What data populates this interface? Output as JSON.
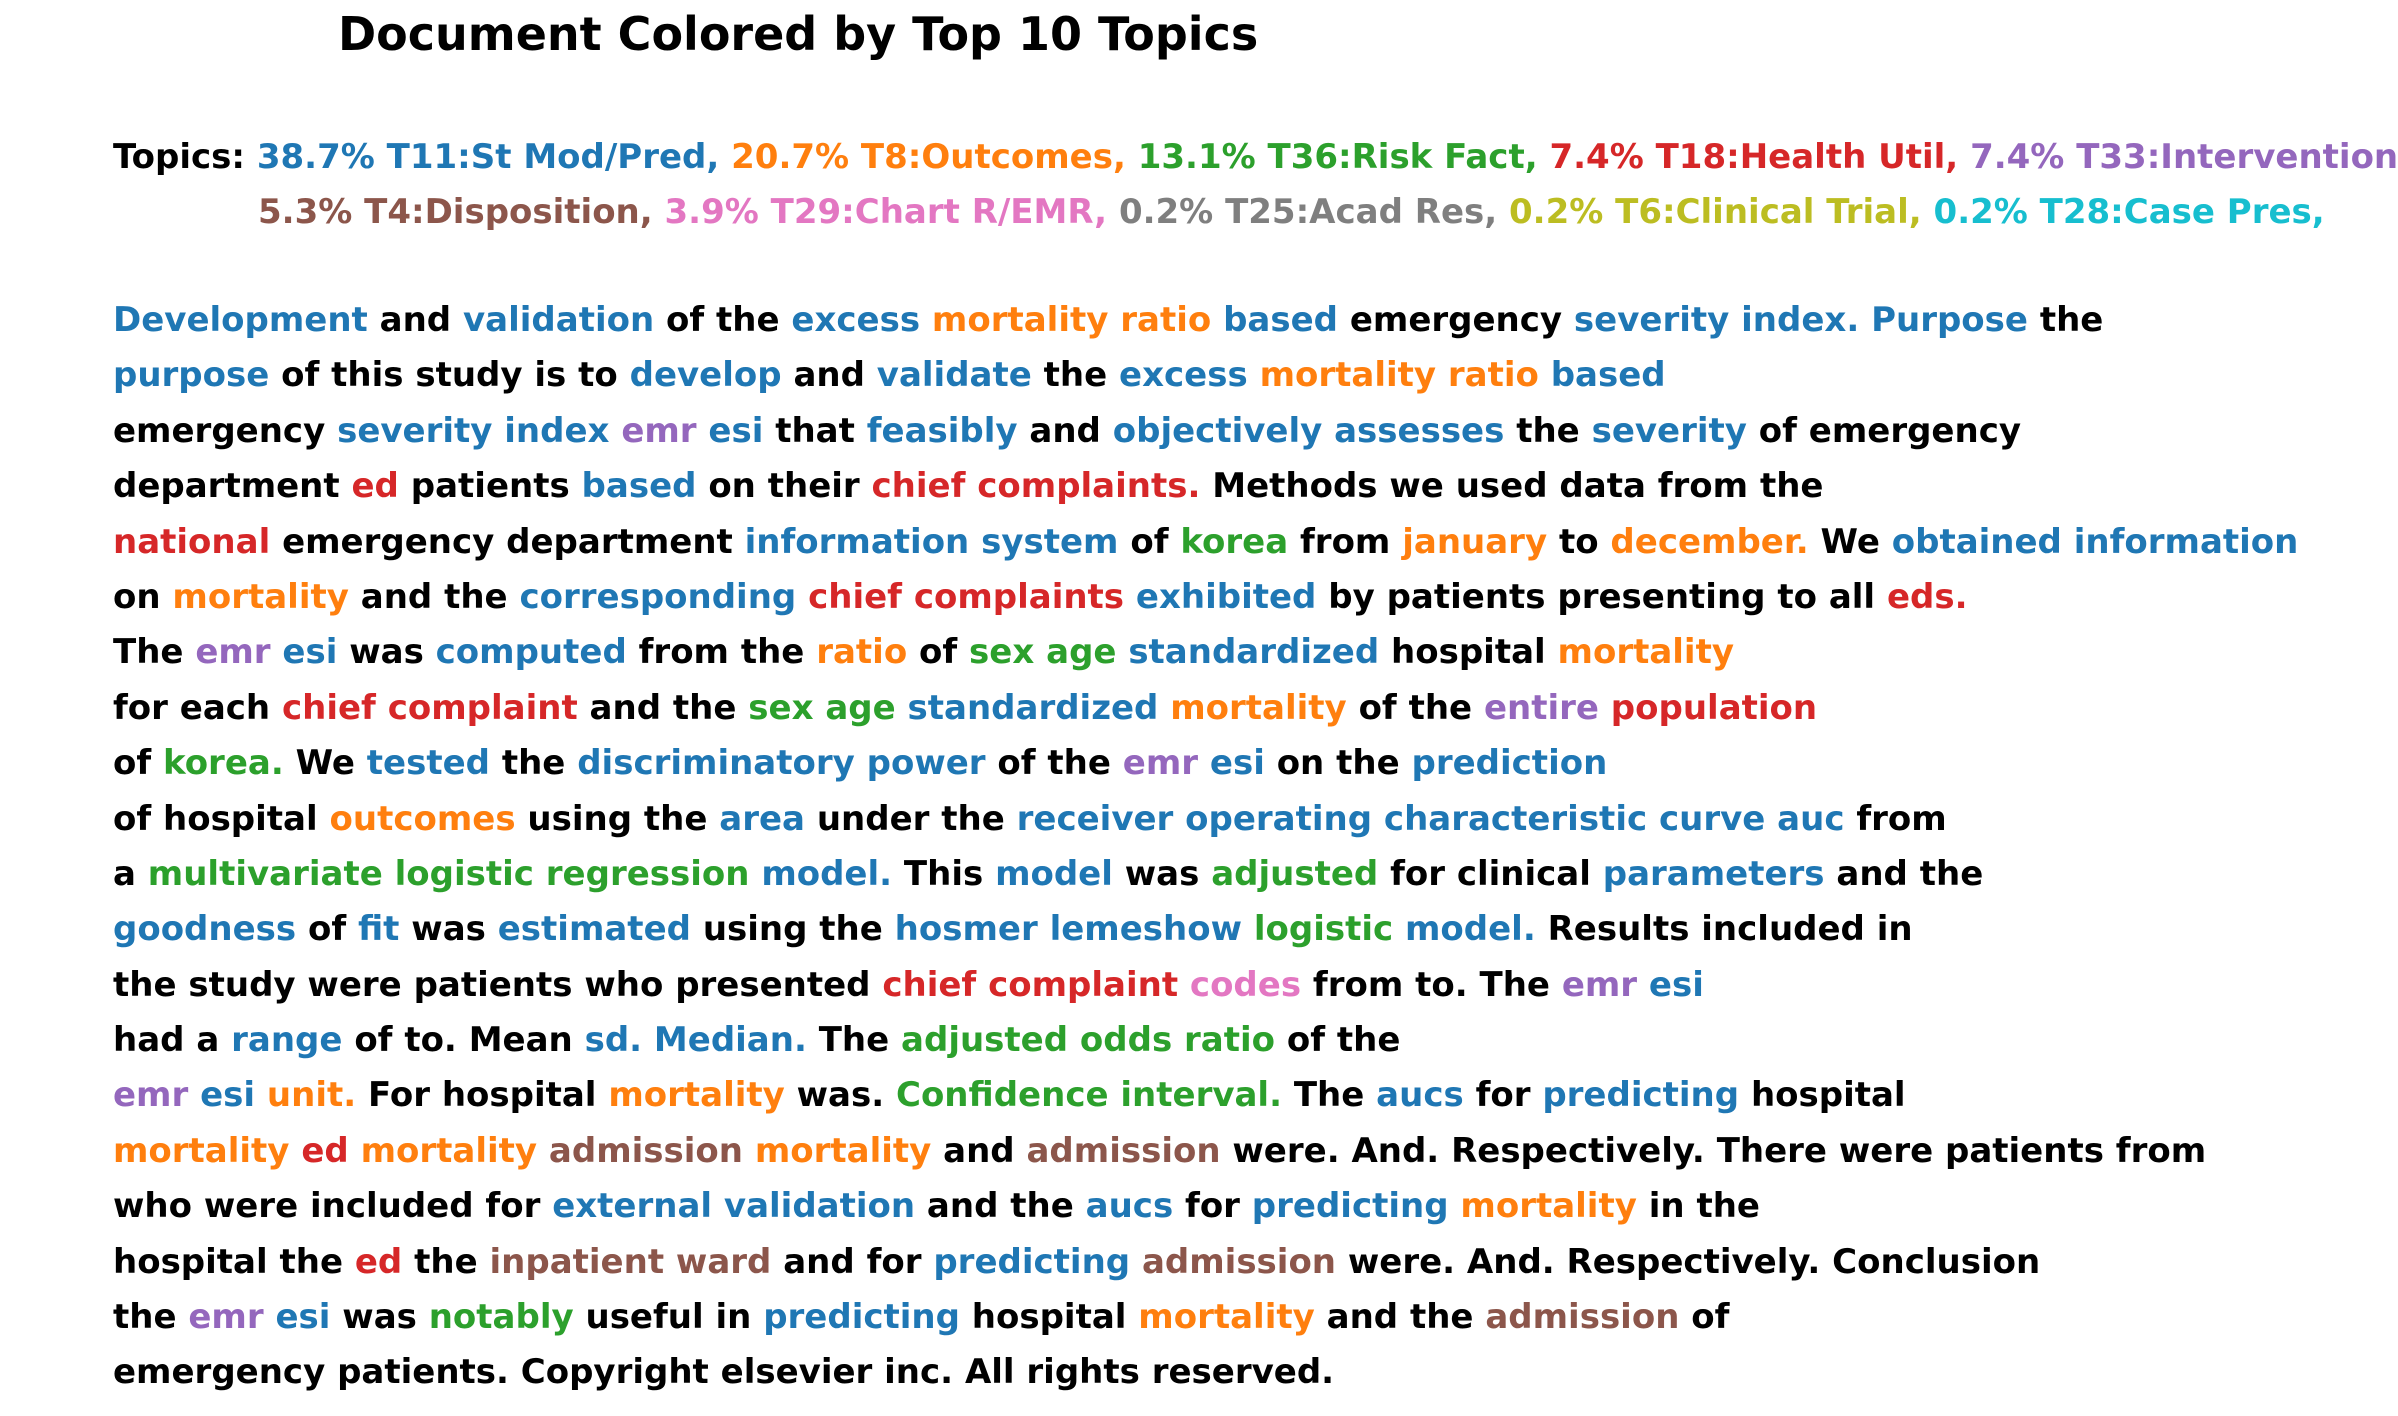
{
  "title": "Document Colored by Top 10 Topics",
  "colors": {
    "T11": "#1f77b4",
    "T8": "#ff7f0e",
    "T36": "#2ca02c",
    "T18": "#d62728",
    "T33": "#9467bd",
    "T4": "#8c564b",
    "T29": "#e377c2",
    "T25": "#7f7f7f",
    "T6": "#bcbd22",
    "T28": "#17becf",
    "none": "#000000"
  },
  "topics_label": "Topics: ",
  "topics_rows": [
    [
      {
        "text": "38.7% T11:St Mod/Pred, ",
        "t": "T11"
      },
      {
        "text": "20.7% T8:Outcomes, ",
        "t": "T8"
      },
      {
        "text": "13.1% T36:Risk Fact, ",
        "t": "T36"
      },
      {
        "text": "7.4% T18:Health Util, ",
        "t": "T18"
      },
      {
        "text": "7.4% T33:Intervention,",
        "t": "T33"
      }
    ],
    [
      {
        "text": "5.3% T4:Disposition, ",
        "t": "T4"
      },
      {
        "text": "3.9% T29:Chart R/EMR, ",
        "t": "T29"
      },
      {
        "text": "0.2% T25:Acad Res, ",
        "t": "T25"
      },
      {
        "text": "0.2% T6:Clinical Trial, ",
        "t": "T6"
      },
      {
        "text": "0.2% T28:Case Pres,",
        "t": "T28"
      }
    ]
  ],
  "lines": [
    [
      [
        "Development",
        "T11"
      ],
      [
        "and",
        "none"
      ],
      [
        "validation",
        "T11"
      ],
      [
        "of",
        "none"
      ],
      [
        "the",
        "none"
      ],
      [
        "excess",
        "T11"
      ],
      [
        "mortality",
        "T8"
      ],
      [
        "ratio",
        "T8"
      ],
      [
        "based",
        "T11"
      ],
      [
        "emergency",
        "none"
      ],
      [
        "severity",
        "T11"
      ],
      [
        "index.",
        "T11"
      ],
      [
        "Purpose",
        "T11"
      ],
      [
        "the",
        "none"
      ]
    ],
    [
      [
        "purpose",
        "T11"
      ],
      [
        "of",
        "none"
      ],
      [
        "this",
        "none"
      ],
      [
        "study",
        "none"
      ],
      [
        "is",
        "none"
      ],
      [
        "to",
        "none"
      ],
      [
        "develop",
        "T11"
      ],
      [
        "and",
        "none"
      ],
      [
        "validate",
        "T11"
      ],
      [
        "the",
        "none"
      ],
      [
        "excess",
        "T11"
      ],
      [
        "mortality",
        "T8"
      ],
      [
        "ratio",
        "T8"
      ],
      [
        "based",
        "T11"
      ]
    ],
    [
      [
        "emergency",
        "none"
      ],
      [
        "severity",
        "T11"
      ],
      [
        "index",
        "T11"
      ],
      [
        "emr",
        "T33"
      ],
      [
        "esi",
        "T11"
      ],
      [
        "that",
        "none"
      ],
      [
        "feasibly",
        "T11"
      ],
      [
        "and",
        "none"
      ],
      [
        "objectively",
        "T11"
      ],
      [
        "assesses",
        "T11"
      ],
      [
        "the",
        "none"
      ],
      [
        "severity",
        "T11"
      ],
      [
        "of",
        "none"
      ],
      [
        "emergency",
        "none"
      ]
    ],
    [
      [
        "department",
        "none"
      ],
      [
        "ed",
        "T18"
      ],
      [
        "patients",
        "none"
      ],
      [
        "based",
        "T11"
      ],
      [
        "on",
        "none"
      ],
      [
        "their",
        "none"
      ],
      [
        "chief",
        "T18"
      ],
      [
        "complaints.",
        "T18"
      ],
      [
        "Methods",
        "none"
      ],
      [
        "we",
        "none"
      ],
      [
        "used",
        "none"
      ],
      [
        "data",
        "none"
      ],
      [
        "from",
        "none"
      ],
      [
        "the",
        "none"
      ]
    ],
    [
      [
        "national",
        "T18"
      ],
      [
        "emergency",
        "none"
      ],
      [
        "department",
        "none"
      ],
      [
        "information",
        "T11"
      ],
      [
        "system",
        "T11"
      ],
      [
        "of",
        "none"
      ],
      [
        "korea",
        "T36"
      ],
      [
        "from",
        "none"
      ],
      [
        "january",
        "T8"
      ],
      [
        "to",
        "none"
      ],
      [
        "december.",
        "T8"
      ],
      [
        "We",
        "none"
      ],
      [
        "obtained",
        "T11"
      ],
      [
        "information",
        "T11"
      ]
    ],
    [
      [
        "on",
        "none"
      ],
      [
        "mortality",
        "T8"
      ],
      [
        "and",
        "none"
      ],
      [
        "the",
        "none"
      ],
      [
        "corresponding",
        "T11"
      ],
      [
        "chief",
        "T18"
      ],
      [
        "complaints",
        "T18"
      ],
      [
        "exhibited",
        "T11"
      ],
      [
        "by",
        "none"
      ],
      [
        "patients",
        "none"
      ],
      [
        "presenting",
        "none"
      ],
      [
        "to",
        "none"
      ],
      [
        "all",
        "none"
      ],
      [
        "eds.",
        "T18"
      ]
    ],
    [
      [
        "The",
        "none"
      ],
      [
        "emr",
        "T33"
      ],
      [
        "esi",
        "T11"
      ],
      [
        "was",
        "none"
      ],
      [
        "computed",
        "T11"
      ],
      [
        "from",
        "none"
      ],
      [
        "the",
        "none"
      ],
      [
        "ratio",
        "T8"
      ],
      [
        "of",
        "none"
      ],
      [
        "sex",
        "T36"
      ],
      [
        "age",
        "T36"
      ],
      [
        "standardized",
        "T11"
      ],
      [
        "hospital",
        "none"
      ],
      [
        "mortality",
        "T8"
      ]
    ],
    [
      [
        "for",
        "none"
      ],
      [
        "each",
        "none"
      ],
      [
        "chief",
        "T18"
      ],
      [
        "complaint",
        "T18"
      ],
      [
        "and",
        "none"
      ],
      [
        "the",
        "none"
      ],
      [
        "sex",
        "T36"
      ],
      [
        "age",
        "T36"
      ],
      [
        "standardized",
        "T11"
      ],
      [
        "mortality",
        "T8"
      ],
      [
        "of",
        "none"
      ],
      [
        "the",
        "none"
      ],
      [
        "entire",
        "T33"
      ],
      [
        "population",
        "T18"
      ]
    ],
    [
      [
        "of",
        "none"
      ],
      [
        "korea.",
        "T36"
      ],
      [
        "We",
        "none"
      ],
      [
        "tested",
        "T11"
      ],
      [
        "the",
        "none"
      ],
      [
        "discriminatory",
        "T11"
      ],
      [
        "power",
        "T11"
      ],
      [
        "of",
        "none"
      ],
      [
        "the",
        "none"
      ],
      [
        "emr",
        "T33"
      ],
      [
        "esi",
        "T11"
      ],
      [
        "on",
        "none"
      ],
      [
        "the",
        "none"
      ],
      [
        "prediction",
        "T11"
      ]
    ],
    [
      [
        "of",
        "none"
      ],
      [
        "hospital",
        "none"
      ],
      [
        "outcomes",
        "T8"
      ],
      [
        "using",
        "none"
      ],
      [
        "the",
        "none"
      ],
      [
        "area",
        "T11"
      ],
      [
        "under",
        "none"
      ],
      [
        "the",
        "none"
      ],
      [
        "receiver",
        "T11"
      ],
      [
        "operating",
        "T11"
      ],
      [
        "characteristic",
        "T11"
      ],
      [
        "curve",
        "T11"
      ],
      [
        "auc",
        "T11"
      ],
      [
        "from",
        "none"
      ]
    ],
    [
      [
        "a",
        "none"
      ],
      [
        "multivariate",
        "T36"
      ],
      [
        "logistic",
        "T36"
      ],
      [
        "regression",
        "T36"
      ],
      [
        "model.",
        "T11"
      ],
      [
        "This",
        "none"
      ],
      [
        "model",
        "T11"
      ],
      [
        "was",
        "none"
      ],
      [
        "adjusted",
        "T36"
      ],
      [
        "for",
        "none"
      ],
      [
        "clinical",
        "none"
      ],
      [
        "parameters",
        "T11"
      ],
      [
        "and",
        "none"
      ],
      [
        "the",
        "none"
      ]
    ],
    [
      [
        "goodness",
        "T11"
      ],
      [
        "of",
        "none"
      ],
      [
        "fit",
        "T11"
      ],
      [
        "was",
        "none"
      ],
      [
        "estimated",
        "T11"
      ],
      [
        "using",
        "none"
      ],
      [
        "the",
        "none"
      ],
      [
        "hosmer",
        "T11"
      ],
      [
        "lemeshow",
        "T11"
      ],
      [
        "logistic",
        "T36"
      ],
      [
        "model.",
        "T11"
      ],
      [
        "Results",
        "none"
      ],
      [
        "included",
        "none"
      ],
      [
        "in",
        "none"
      ]
    ],
    [
      [
        "the",
        "none"
      ],
      [
        "study",
        "none"
      ],
      [
        "were",
        "none"
      ],
      [
        "patients",
        "none"
      ],
      [
        "who",
        "none"
      ],
      [
        "presented",
        "none"
      ],
      [
        "chief",
        "T18"
      ],
      [
        "complaint",
        "T18"
      ],
      [
        "codes",
        "T29"
      ],
      [
        "from",
        "none"
      ],
      [
        "to.",
        "none"
      ],
      [
        "The",
        "none"
      ],
      [
        "emr",
        "T33"
      ],
      [
        "esi",
        "T11"
      ]
    ],
    [
      [
        "had",
        "none"
      ],
      [
        "a",
        "none"
      ],
      [
        "range",
        "T11"
      ],
      [
        "of",
        "none"
      ],
      [
        "to.",
        "none"
      ],
      [
        "Mean",
        "none"
      ],
      [
        "sd.",
        "T11"
      ],
      [
        "Median.",
        "T11"
      ],
      [
        "The",
        "none"
      ],
      [
        "adjusted",
        "T36"
      ],
      [
        "odds",
        "T36"
      ],
      [
        "ratio",
        "T36"
      ],
      [
        "of",
        "none"
      ],
      [
        "the",
        "none"
      ]
    ],
    [
      [
        "emr",
        "T33"
      ],
      [
        "esi",
        "T11"
      ],
      [
        "unit.",
        "T8"
      ],
      [
        "For",
        "none"
      ],
      [
        "hospital",
        "none"
      ],
      [
        "mortality",
        "T8"
      ],
      [
        "was.",
        "none"
      ],
      [
        "Confidence",
        "T36"
      ],
      [
        "interval.",
        "T36"
      ],
      [
        "The",
        "none"
      ],
      [
        "aucs",
        "T11"
      ],
      [
        "for",
        "none"
      ],
      [
        "predicting",
        "T11"
      ],
      [
        "hospital",
        "none"
      ]
    ],
    [
      [
        "mortality",
        "T8"
      ],
      [
        "ed",
        "T18"
      ],
      [
        "mortality",
        "T8"
      ],
      [
        "admission",
        "T4"
      ],
      [
        "mortality",
        "T8"
      ],
      [
        "and",
        "none"
      ],
      [
        "admission",
        "T4"
      ],
      [
        "were.",
        "none"
      ],
      [
        "And.",
        "none"
      ],
      [
        "Respectively.",
        "none"
      ],
      [
        "There",
        "none"
      ],
      [
        "were",
        "none"
      ],
      [
        "patients",
        "none"
      ],
      [
        "from",
        "none"
      ]
    ],
    [
      [
        "who",
        "none"
      ],
      [
        "were",
        "none"
      ],
      [
        "included",
        "none"
      ],
      [
        "for",
        "none"
      ],
      [
        "external",
        "T11"
      ],
      [
        "validation",
        "T11"
      ],
      [
        "and",
        "none"
      ],
      [
        "the",
        "none"
      ],
      [
        "aucs",
        "T11"
      ],
      [
        "for",
        "none"
      ],
      [
        "predicting",
        "T11"
      ],
      [
        "mortality",
        "T8"
      ],
      [
        "in",
        "none"
      ],
      [
        "the",
        "none"
      ]
    ],
    [
      [
        "hospital",
        "none"
      ],
      [
        "the",
        "none"
      ],
      [
        "ed",
        "T18"
      ],
      [
        "the",
        "none"
      ],
      [
        "inpatient",
        "T4"
      ],
      [
        "ward",
        "T4"
      ],
      [
        "and",
        "none"
      ],
      [
        "for",
        "none"
      ],
      [
        "predicting",
        "T11"
      ],
      [
        "admission",
        "T4"
      ],
      [
        "were.",
        "none"
      ],
      [
        "And.",
        "none"
      ],
      [
        "Respectively.",
        "none"
      ],
      [
        "Conclusion",
        "none"
      ]
    ],
    [
      [
        "the",
        "none"
      ],
      [
        "emr",
        "T33"
      ],
      [
        "esi",
        "T11"
      ],
      [
        "was",
        "none"
      ],
      [
        "notably",
        "T36"
      ],
      [
        "useful",
        "none"
      ],
      [
        "in",
        "none"
      ],
      [
        "predicting",
        "T11"
      ],
      [
        "hospital",
        "none"
      ],
      [
        "mortality",
        "T8"
      ],
      [
        "and",
        "none"
      ],
      [
        "the",
        "none"
      ],
      [
        "admission",
        "T4"
      ],
      [
        "of",
        "none"
      ]
    ],
    [
      [
        "emergency",
        "none"
      ],
      [
        "patients.",
        "none"
      ],
      [
        "Copyright",
        "none"
      ],
      [
        "elsevier",
        "none"
      ],
      [
        "inc.",
        "none"
      ],
      [
        "All",
        "none"
      ],
      [
        "rights",
        "none"
      ],
      [
        "reserved.",
        "none"
      ]
    ]
  ]
}
